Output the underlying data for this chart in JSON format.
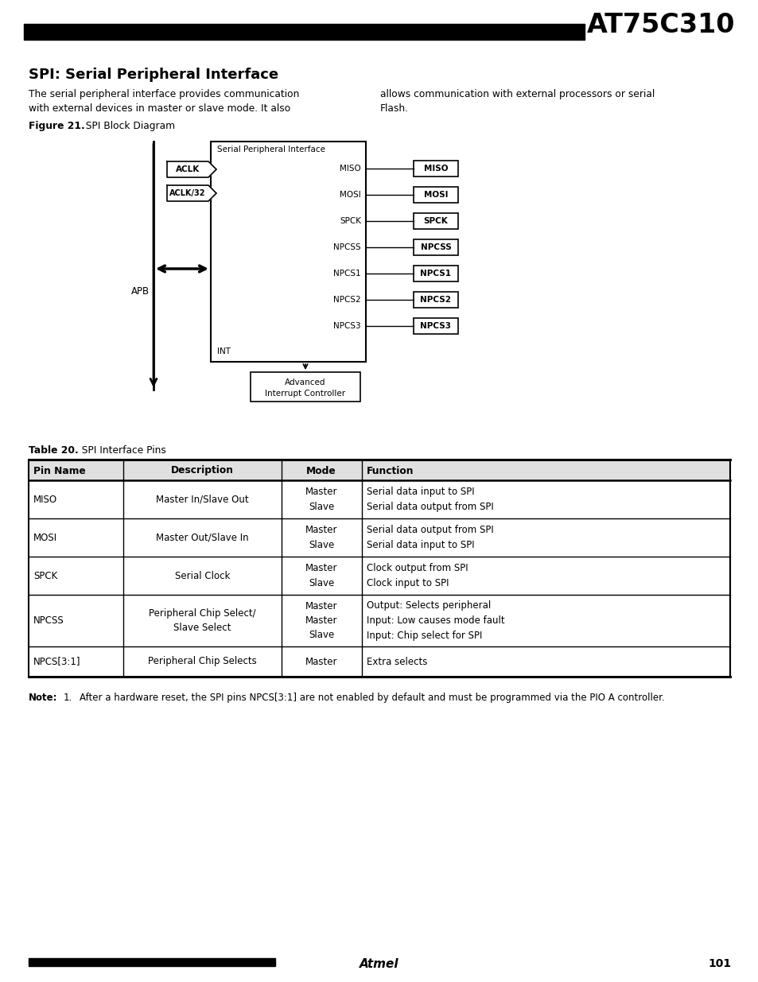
{
  "title": "AT75C310",
  "page_title": "SPI: Serial Peripheral Interface",
  "body_text_left": "The serial peripheral interface provides communication\nwith external devices in master or slave mode. It also",
  "body_text_right": "allows communication with external processors or serial\nFlash.",
  "figure_label": "Figure 21.",
  "figure_title": "  SPI Block Diagram",
  "table_label": "Table 20.",
  "table_title": "  SPI Interface Pins",
  "table_headers": [
    "Pin Name",
    "Description",
    "Mode",
    "Function"
  ],
  "table_rows": [
    [
      "MISO",
      "Master In/Slave Out",
      "Master\nSlave",
      "Serial data input to SPI\nSerial data output from SPI"
    ],
    [
      "MOSI",
      "Master Out/Slave In",
      "Master\nSlave",
      "Serial data output from SPI\nSerial data input to SPI"
    ],
    [
      "SPCK",
      "Serial Clock",
      "Master\nSlave",
      "Clock output from SPI\nClock input to SPI"
    ],
    [
      "NPCSS",
      "Peripheral Chip Select/\nSlave Select",
      "Master\nMaster\nSlave",
      "Output: Selects peripheral\nInput: Low causes mode fault\nInput: Chip select for SPI"
    ],
    [
      "NPCS[3:1]",
      "Peripheral Chip Selects",
      "Master",
      "Extra selects"
    ]
  ],
  "note_label": "Note:",
  "note_num": "1.",
  "note_body": "After a hardware reset, the SPI pins NPCS[3:1] are not enabled by default and must be programmed via the PIO A controller.",
  "page_number": "101",
  "signals": [
    "MISO",
    "MOSI",
    "SPCK",
    "NPCSS",
    "NPCS1",
    "NPCS2",
    "NPCS3"
  ],
  "background_color": "#ffffff"
}
